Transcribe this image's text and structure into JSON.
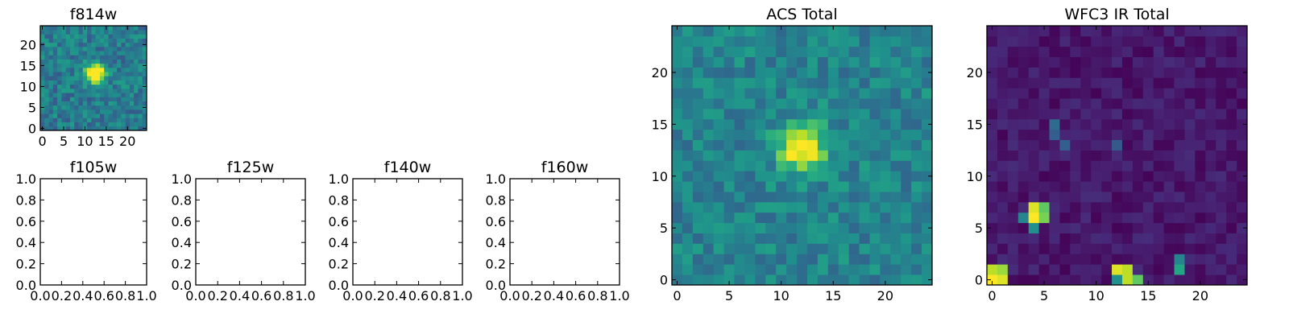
{
  "chart_data": [
    {
      "id": "f814w",
      "type": "heatmap",
      "title": "f814w",
      "colormap": "viridis",
      "n": 25,
      "xlim": [
        -0.5,
        24.5
      ],
      "ylim": [
        -0.5,
        24.5
      ],
      "xticks": [
        0,
        5,
        10,
        15,
        20
      ],
      "yticks": [
        0,
        5,
        10,
        15,
        20
      ],
      "sources": [
        {
          "x": 12.5,
          "y": 13.2,
          "amp": 1.0,
          "sigma": 1.5
        }
      ],
      "background": 0.42,
      "noise": 0.14,
      "seed": 11
    },
    {
      "id": "f105w",
      "type": "empty",
      "title": "f105w",
      "xlim": [
        0,
        1
      ],
      "ylim": [
        0,
        1
      ],
      "xtick_labels": [
        "0.0",
        "0.2",
        "0.4",
        "0.6",
        "0.8",
        "1.0"
      ],
      "ytick_labels": [
        "0.0",
        "0.2",
        "0.4",
        "0.6",
        "0.8",
        "1.0"
      ]
    },
    {
      "id": "f125w",
      "type": "empty",
      "title": "f125w",
      "xlim": [
        0,
        1
      ],
      "ylim": [
        0,
        1
      ],
      "xtick_labels": [
        "0.0",
        "0.2",
        "0.4",
        "0.6",
        "0.8",
        "1.0"
      ],
      "ytick_labels": [
        "0.0",
        "0.2",
        "0.4",
        "0.6",
        "0.8",
        "1.0"
      ]
    },
    {
      "id": "f140w",
      "type": "empty",
      "title": "f140w",
      "xlim": [
        0,
        1
      ],
      "ylim": [
        0,
        1
      ],
      "xtick_labels": [
        "0.0",
        "0.2",
        "0.4",
        "0.6",
        "0.8",
        "1.0"
      ],
      "ytick_labels": [
        "0.0",
        "0.2",
        "0.4",
        "0.6",
        "0.8",
        "1.0"
      ]
    },
    {
      "id": "f160w",
      "type": "empty",
      "title": "f160w",
      "xlim": [
        0,
        1
      ],
      "ylim": [
        0,
        1
      ],
      "xtick_labels": [
        "0.0",
        "0.2",
        "0.4",
        "0.6",
        "0.8",
        "1.0"
      ],
      "ytick_labels": [
        "0.0",
        "0.2",
        "0.4",
        "0.6",
        "0.8",
        "1.0"
      ]
    },
    {
      "id": "acs-total",
      "type": "heatmap",
      "title": "ACS Total",
      "colormap": "viridis",
      "n": 25,
      "xlim": [
        -0.5,
        24.5
      ],
      "ylim": [
        -0.5,
        24.5
      ],
      "xticks": [
        0,
        5,
        10,
        15,
        20
      ],
      "yticks": [
        0,
        5,
        10,
        15,
        20
      ],
      "sources": [
        {
          "x": 12.0,
          "y": 12.7,
          "amp": 0.62,
          "sigma": 1.6
        }
      ],
      "background": 0.45,
      "noise": 0.12,
      "seed": 23
    },
    {
      "id": "wfc3-ir-total",
      "type": "heatmap",
      "title": "WFC3 IR Total",
      "colormap": "viridis",
      "n": 25,
      "xlim": [
        -0.5,
        24.5
      ],
      "ylim": [
        -0.5,
        24.5
      ],
      "xticks": [
        0,
        5,
        10,
        15,
        20
      ],
      "yticks": [
        0,
        5,
        10,
        15,
        20
      ],
      "hot_pixels": [
        {
          "x": 0,
          "y": 0,
          "v": 1.0
        },
        {
          "x": 0,
          "y": 1,
          "v": 0.9
        },
        {
          "x": 1,
          "y": 0,
          "v": 0.95
        },
        {
          "x": 1,
          "y": 1,
          "v": 0.85
        },
        {
          "x": 4,
          "y": 6,
          "v": 1.0
        },
        {
          "x": 4,
          "y": 7,
          "v": 0.95
        },
        {
          "x": 5,
          "y": 6,
          "v": 0.8
        },
        {
          "x": 5,
          "y": 7,
          "v": 0.75
        },
        {
          "x": 4,
          "y": 5,
          "v": 0.5
        },
        {
          "x": 3,
          "y": 6,
          "v": 0.45
        },
        {
          "x": 12,
          "y": 1,
          "v": 0.95
        },
        {
          "x": 13,
          "y": 1,
          "v": 0.9
        },
        {
          "x": 13,
          "y": 0,
          "v": 0.9
        },
        {
          "x": 14,
          "y": 0,
          "v": 0.75
        },
        {
          "x": 12,
          "y": 0,
          "v": 0.5
        },
        {
          "x": 18,
          "y": 1,
          "v": 0.6
        },
        {
          "x": 18,
          "y": 2,
          "v": 0.45
        },
        {
          "x": 6,
          "y": 15,
          "v": 0.35
        },
        {
          "x": 6,
          "y": 14,
          "v": 0.3
        },
        {
          "x": 7,
          "y": 13,
          "v": 0.3
        },
        {
          "x": 12,
          "y": 13,
          "v": 0.28
        }
      ],
      "background": 0.07,
      "noise": 0.06,
      "seed": 37
    }
  ]
}
